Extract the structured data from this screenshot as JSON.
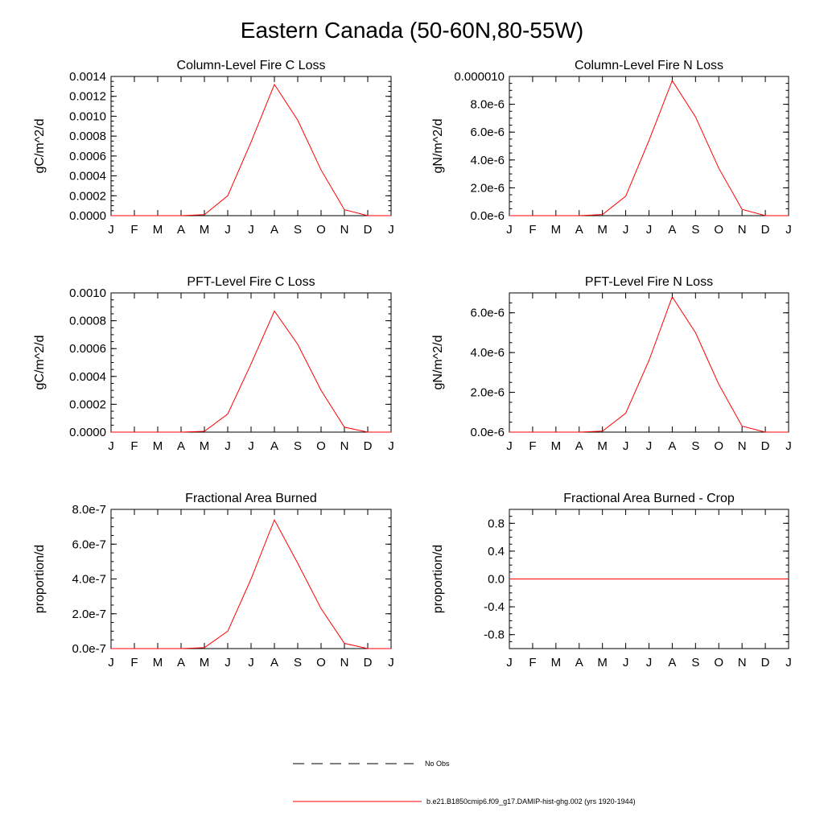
{
  "figure": {
    "title": "Eastern Canada (50-60N,80-55W)"
  },
  "months": [
    "J",
    "F",
    "M",
    "A",
    "M",
    "J",
    "J",
    "A",
    "S",
    "O",
    "N",
    "D",
    "J"
  ],
  "colors": {
    "model_line": "#ff0000",
    "axis": "#000000"
  },
  "chart_data": [
    {
      "type": "line",
      "title": "Column-Level Fire C Loss",
      "ylabel": "gC/m^2/d",
      "ylim": [
        0,
        0.0014
      ],
      "yticks": [
        0,
        0.0002,
        0.0004,
        0.0006,
        0.0008,
        0.001,
        0.0012,
        0.0014
      ],
      "yticklabels": [
        "0.0000",
        "0.0002",
        "0.0004",
        "0.0006",
        "0.0008",
        "0.0010",
        "0.0012",
        "0.0014"
      ],
      "x": [
        "J",
        "F",
        "M",
        "A",
        "M",
        "J",
        "J",
        "A",
        "S",
        "O",
        "N",
        "D",
        "J"
      ],
      "series": [
        {
          "name": "b.e21.B1850cmip6.f09_g17.DAMIP-hist-ghg.002 (yrs 1920-1944)",
          "values": [
            0,
            0,
            0,
            0,
            1e-05,
            0.0002,
            0.00074,
            0.00132,
            0.00096,
            0.00046,
            6e-05,
            0,
            0
          ]
        }
      ]
    },
    {
      "type": "line",
      "title": "Column-Level Fire N Loss",
      "ylabel": "gN/m^2/d",
      "ylim": [
        0,
        1e-05
      ],
      "yticks": [
        0,
        2e-06,
        4e-06,
        6e-06,
        8e-06,
        1e-05
      ],
      "yticklabels": [
        "0.0e-6",
        "2.0e-6",
        "4.0e-6",
        "6.0e-6",
        "8.0e-6",
        "0.000010"
      ],
      "x": [
        "J",
        "F",
        "M",
        "A",
        "M",
        "J",
        "J",
        "A",
        "S",
        "O",
        "N",
        "D",
        "J"
      ],
      "series": [
        {
          "name": "b.e21.B1850cmip6.f09_g17.DAMIP-hist-ghg.002 (yrs 1920-1944)",
          "values": [
            0,
            0,
            0,
            0,
            8e-08,
            1.4e-06,
            5.4e-06,
            9.7e-06,
            7.1e-06,
            3.4e-06,
            4.5e-07,
            0,
            0
          ]
        }
      ]
    },
    {
      "type": "line",
      "title": "PFT-Level Fire C Loss",
      "ylabel": "gC/m^2/d",
      "ylim": [
        0,
        0.001
      ],
      "yticks": [
        0,
        0.0002,
        0.0004,
        0.0006,
        0.0008,
        0.001
      ],
      "yticklabels": [
        "0.0000",
        "0.0002",
        "0.0004",
        "0.0006",
        "0.0008",
        "0.0010"
      ],
      "x": [
        "J",
        "F",
        "M",
        "A",
        "M",
        "J",
        "J",
        "A",
        "S",
        "O",
        "N",
        "D",
        "J"
      ],
      "series": [
        {
          "name": "b.e21.B1850cmip6.f09_g17.DAMIP-hist-ghg.002 (yrs 1920-1944)",
          "values": [
            0,
            0,
            0,
            0,
            6e-06,
            0.00013,
            0.00049,
            0.00087,
            0.00063,
            0.0003,
            3.5e-05,
            0,
            0
          ]
        }
      ]
    },
    {
      "type": "line",
      "title": "PFT-Level Fire N Loss",
      "ylabel": "gN/m^2/d",
      "ylim": [
        0,
        7e-06
      ],
      "yticks": [
        0,
        2e-06,
        4e-06,
        6e-06
      ],
      "yticklabels": [
        "0.0e-6",
        "2.0e-6",
        "4.0e-6",
        "6.0e-6"
      ],
      "x": [
        "J",
        "F",
        "M",
        "A",
        "M",
        "J",
        "J",
        "A",
        "S",
        "O",
        "N",
        "D",
        "J"
      ],
      "series": [
        {
          "name": "b.e21.B1850cmip6.f09_g17.DAMIP-hist-ghg.002 (yrs 1920-1944)",
          "values": [
            0,
            0,
            0,
            0,
            5e-08,
            9.5e-07,
            3.6e-06,
            6.8e-06,
            5e-06,
            2.4e-06,
            3e-07,
            0,
            0
          ]
        }
      ]
    },
    {
      "type": "line",
      "title": "Fractional Area Burned",
      "ylabel": "proportion/d",
      "ylim": [
        0,
        8e-07
      ],
      "yticks": [
        0,
        2e-07,
        4e-07,
        6e-07,
        8e-07
      ],
      "yticklabels": [
        "0.0e-7",
        "2.0e-7",
        "4.0e-7",
        "6.0e-7",
        "8.0e-7"
      ],
      "x": [
        "J",
        "F",
        "M",
        "A",
        "M",
        "J",
        "J",
        "A",
        "S",
        "O",
        "N",
        "D",
        "J"
      ],
      "series": [
        {
          "name": "b.e21.B1850cmip6.f09_g17.DAMIP-hist-ghg.002 (yrs 1920-1944)",
          "values": [
            0,
            0,
            0,
            0,
            5e-09,
            1e-07,
            4e-07,
            7.4e-07,
            4.9e-07,
            2.3e-07,
            3e-08,
            0,
            0
          ]
        }
      ]
    },
    {
      "type": "line",
      "title": "Fractional Area Burned - Crop",
      "ylabel": "proportion/d",
      "ylim": [
        -1,
        1
      ],
      "yticks": [
        -0.8,
        -0.4,
        0,
        0.4,
        0.8
      ],
      "yticklabels": [
        "-0.8",
        "-0.4",
        "0.0",
        "0.4",
        "0.8"
      ],
      "x": [
        "J",
        "F",
        "M",
        "A",
        "M",
        "J",
        "J",
        "A",
        "S",
        "O",
        "N",
        "D",
        "J"
      ],
      "series": [
        {
          "name": "b.e21.B1850cmip6.f09_g17.DAMIP-hist-ghg.002 (yrs 1920-1944)",
          "values": [
            0,
            0,
            0,
            0,
            0,
            0,
            0,
            0,
            0,
            0,
            0,
            0,
            0
          ]
        }
      ]
    }
  ],
  "legend": {
    "items": [
      {
        "label": "No Obs",
        "style": "dashed",
        "color": "#000000"
      },
      {
        "label": "b.e21.B1850cmip6.f09_g17.DAMIP-hist-ghg.002 (yrs 1920-1944)",
        "style": "solid",
        "color": "#ff0000"
      }
    ]
  }
}
